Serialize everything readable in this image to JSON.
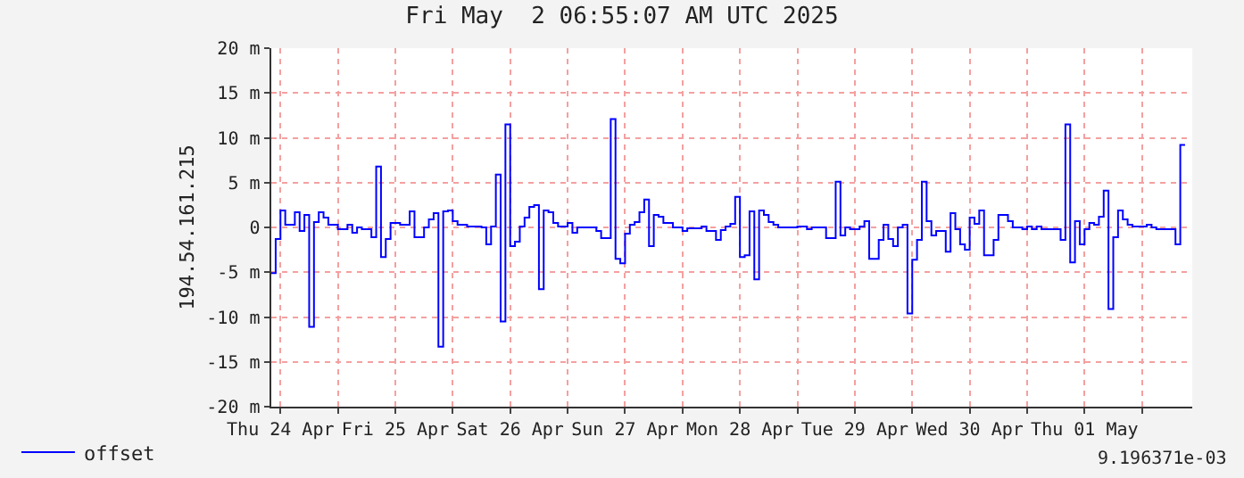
{
  "chart_data": {
    "type": "step",
    "title": "Fri May  2 06:55:07 AM UTC 2025",
    "ylabel": "194.54.161.215",
    "x": [
      "2025-04-24T10:00",
      "2025-04-24T11:00",
      "2025-04-24T12:00",
      "2025-04-24T13:00",
      "2025-04-24T15:00",
      "2025-04-24T16:00",
      "2025-04-24T17:00",
      "2025-04-24T18:00",
      "2025-04-24T19:00",
      "2025-04-24T20:00",
      "2025-04-24T21:00",
      "2025-04-24T22:00",
      "2025-04-25T00:00",
      "2025-04-25T02:00",
      "2025-04-25T03:00",
      "2025-04-25T04:00",
      "2025-04-25T05:00",
      "2025-04-25T07:00",
      "2025-04-25T08:00",
      "2025-04-25T09:00",
      "2025-04-25T10:00",
      "2025-04-25T11:00",
      "2025-04-25T13:00",
      "2025-04-25T15:00",
      "2025-04-25T16:00",
      "2025-04-25T18:00",
      "2025-04-25T19:00",
      "2025-04-25T20:00",
      "2025-04-25T21:00",
      "2025-04-25T22:00",
      "2025-04-25T23:00",
      "2025-04-26T00:00",
      "2025-04-26T01:00",
      "2025-04-26T03:00",
      "2025-04-26T06:00",
      "2025-04-26T07:00",
      "2025-04-26T08:00",
      "2025-04-26T09:00",
      "2025-04-26T10:00",
      "2025-04-26T11:00",
      "2025-04-26T12:00",
      "2025-04-26T13:00",
      "2025-04-26T14:00",
      "2025-04-26T15:00",
      "2025-04-26T16:00",
      "2025-04-26T17:00",
      "2025-04-26T18:00",
      "2025-04-26T19:00",
      "2025-04-26T20:00",
      "2025-04-26T21:00",
      "2025-04-26T22:00",
      "2025-04-27T00:00",
      "2025-04-27T01:00",
      "2025-04-27T02:00",
      "2025-04-27T06:00",
      "2025-04-27T07:00",
      "2025-04-27T09:00",
      "2025-04-27T10:00",
      "2025-04-27T11:00",
      "2025-04-27T12:00",
      "2025-04-27T13:00",
      "2025-04-27T14:00",
      "2025-04-27T15:00",
      "2025-04-27T16:00",
      "2025-04-27T17:00",
      "2025-04-27T18:00",
      "2025-04-27T19:00",
      "2025-04-27T20:00",
      "2025-04-27T22:00",
      "2025-04-28T00:00",
      "2025-04-28T01:00",
      "2025-04-28T04:00",
      "2025-04-28T05:00",
      "2025-04-28T07:00",
      "2025-04-28T08:00",
      "2025-04-28T09:00",
      "2025-04-28T10:00",
      "2025-04-28T11:00",
      "2025-04-28T12:00",
      "2025-04-28T13:00",
      "2025-04-28T14:00",
      "2025-04-28T15:00",
      "2025-04-28T16:00",
      "2025-04-28T17:00",
      "2025-04-28T18:00",
      "2025-04-28T19:00",
      "2025-04-28T20:00",
      "2025-04-29T00:00",
      "2025-04-29T02:00",
      "2025-04-29T03:00",
      "2025-04-29T06:00",
      "2025-04-29T08:00",
      "2025-04-29T09:00",
      "2025-04-29T10:00",
      "2025-04-29T11:00",
      "2025-04-29T13:00",
      "2025-04-29T14:00",
      "2025-04-29T15:00",
      "2025-04-29T17:00",
      "2025-04-29T18:00",
      "2025-04-29T19:00",
      "2025-04-29T20:00",
      "2025-04-29T21:00",
      "2025-04-29T22:00",
      "2025-04-29T23:00",
      "2025-04-30T00:00",
      "2025-04-30T01:00",
      "2025-04-30T02:00",
      "2025-04-30T03:00",
      "2025-04-30T04:00",
      "2025-04-30T05:00",
      "2025-04-30T07:00",
      "2025-04-30T08:00",
      "2025-04-30T09:00",
      "2025-04-30T10:00",
      "2025-04-30T11:00",
      "2025-04-30T12:00",
      "2025-04-30T13:00",
      "2025-04-30T14:00",
      "2025-04-30T15:00",
      "2025-04-30T17:00",
      "2025-04-30T18:00",
      "2025-04-30T20:00",
      "2025-04-30T21:00",
      "2025-04-30T23:00",
      "2025-05-01T00:00",
      "2025-05-01T01:00",
      "2025-05-01T02:00",
      "2025-05-01T03:00",
      "2025-05-01T04:00",
      "2025-05-01T07:00",
      "2025-05-01T08:00",
      "2025-05-01T09:00",
      "2025-05-01T10:00",
      "2025-05-01T11:00",
      "2025-05-01T12:00",
      "2025-05-01T13:00",
      "2025-05-01T14:00",
      "2025-05-01T15:00",
      "2025-05-01T16:00",
      "2025-05-01T17:00",
      "2025-05-01T18:00",
      "2025-05-01T19:00",
      "2025-05-01T20:00",
      "2025-05-01T21:00",
      "2025-05-01T22:00",
      "2025-05-02T00:00",
      "2025-05-02T01:00",
      "2025-05-02T02:00",
      "2025-05-02T03:00",
      "2025-05-02T07:00",
      "2025-05-02T08:00",
      "2025-05-02T09:00"
    ],
    "series": [
      {
        "name": "offset",
        "color": "#0000ff",
        "values": [
          -5.1,
          -1.3,
          1.9,
          0.3,
          1.7,
          -0.4,
          1.4,
          -11.1,
          0.6,
          1.7,
          1.1,
          0.3,
          -0.2,
          0.3,
          -0.6,
          0,
          -0.2,
          -1.1,
          6.8,
          -3.3,
          -1.3,
          0.5,
          0.3,
          1.8,
          -1.1,
          0,
          0.9,
          1.6,
          -13.3,
          1.8,
          1.9,
          0.7,
          0.3,
          0.1,
          0,
          -1.9,
          0.1,
          5.9,
          -10.5,
          11.5,
          -2.1,
          -1.6,
          0.1,
          1.1,
          2.3,
          2.5,
          -6.9,
          1.9,
          1.7,
          0.5,
          0.1,
          0.5,
          -0.6,
          0,
          -0.4,
          -1.2,
          12.1,
          -3.5,
          -4,
          -0.7,
          0.3,
          0.6,
          1.7,
          3.1,
          -2.1,
          1.4,
          1.2,
          0.5,
          0,
          -0.4,
          -0.1,
          0.1,
          -0.4,
          -1.4,
          -0.3,
          0.1,
          0.4,
          3.4,
          -3.3,
          -3.1,
          1.8,
          -5.8,
          1.9,
          1.4,
          0.6,
          0.3,
          0,
          0.1,
          -0.2,
          0,
          -1.2,
          5.1,
          -0.9,
          0,
          -0.2,
          0.1,
          0.7,
          -3.5,
          -1.4,
          0.3,
          -1.3,
          -2.1,
          0,
          0.3,
          -9.6,
          -3.6,
          -1.4,
          5.1,
          0.7,
          -0.9,
          -0.4,
          -2.7,
          1.6,
          -0.2,
          -1.9,
          -2.5,
          1.1,
          0.4,
          1.9,
          -3.1,
          -1.4,
          1.4,
          0.7,
          0,
          -0.2,
          0.1,
          -0.2,
          0.1,
          -0.2,
          -0.2,
          -1.4,
          11.5,
          -3.9,
          0.7,
          -1.9,
          -0.2,
          0.5,
          0.3,
          1.2,
          4.1,
          -9.1,
          -1.1,
          1.9,
          0.9,
          0.3,
          0.1,
          0.1,
          0.3,
          0,
          -0.2,
          -1.9,
          9.2,
          9.2
        ]
      }
    ],
    "xlim": [
      "2025-04-24T10:00",
      "2025-05-02T10:30"
    ],
    "xticks": [
      {
        "value": "2025-04-24T12:00",
        "label": "Thu 24 Apr"
      },
      {
        "value": "2025-04-25T00:00",
        "label": null
      },
      {
        "value": "2025-04-25T12:00",
        "label": "Fri 25 Apr"
      },
      {
        "value": "2025-04-26T00:00",
        "label": null
      },
      {
        "value": "2025-04-26T12:00",
        "label": "Sat 26 Apr"
      },
      {
        "value": "2025-04-27T00:00",
        "label": null
      },
      {
        "value": "2025-04-27T12:00",
        "label": "Sun 27 Apr"
      },
      {
        "value": "2025-04-28T00:00",
        "label": null
      },
      {
        "value": "2025-04-28T12:00",
        "label": "Mon 28 Apr"
      },
      {
        "value": "2025-04-29T00:00",
        "label": null
      },
      {
        "value": "2025-04-29T12:00",
        "label": "Tue 29 Apr"
      },
      {
        "value": "2025-04-30T00:00",
        "label": null
      },
      {
        "value": "2025-04-30T12:00",
        "label": "Wed 30 Apr"
      },
      {
        "value": "2025-05-01T00:00",
        "label": null
      },
      {
        "value": "2025-05-01T12:00",
        "label": "Thu 01 May"
      },
      {
        "value": "2025-05-02T00:00",
        "label": null
      }
    ],
    "ylim": [
      -20,
      20
    ],
    "yticks": [
      {
        "value": -20,
        "label": "-20 m"
      },
      {
        "value": -15,
        "label": "-15 m"
      },
      {
        "value": -10,
        "label": "-10 m"
      },
      {
        "value": -5,
        "label": "-5 m"
      },
      0,
      {
        "value": 5,
        "label": "5 m"
      },
      {
        "value": 10,
        "label": "10 m"
      },
      {
        "value": 15,
        "label": "15 m"
      },
      {
        "value": 20,
        "label": "20 m"
      }
    ],
    "grid": true,
    "legend": "bottom left",
    "annotations": [
      "9.196371e-03"
    ]
  }
}
